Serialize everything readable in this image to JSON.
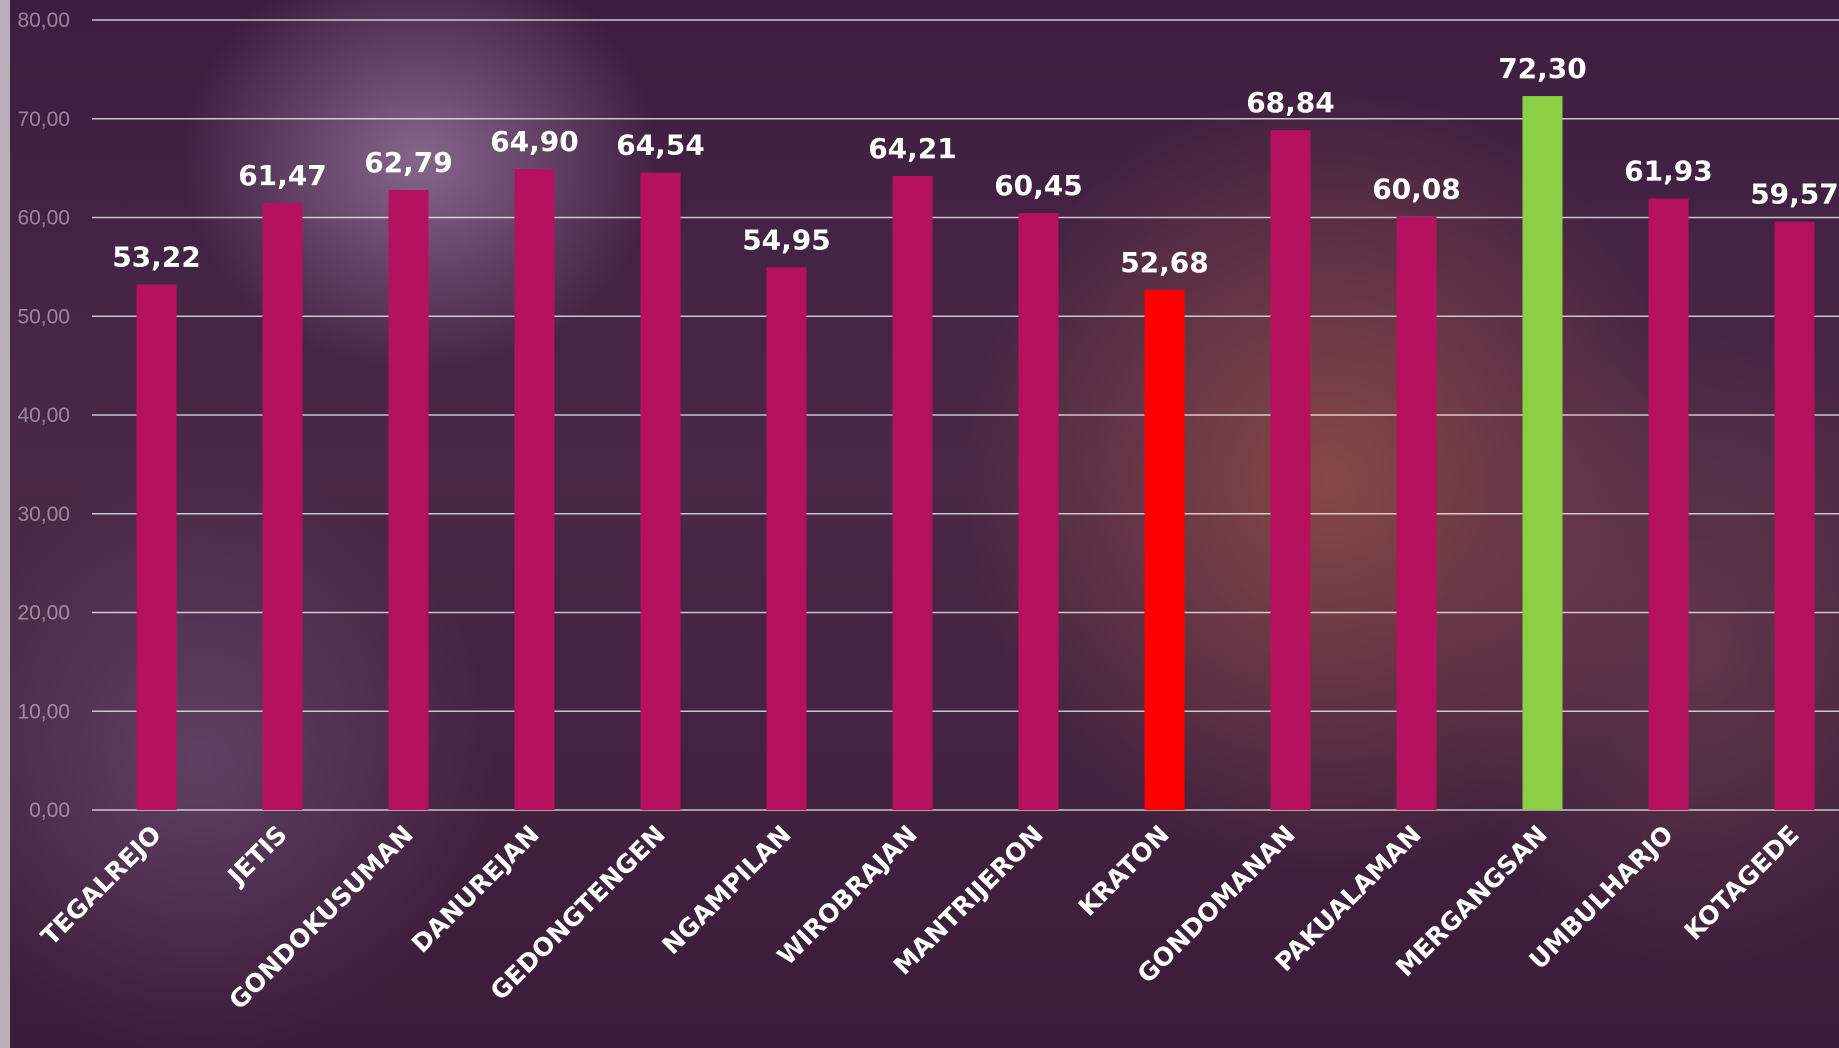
{
  "chart_data": {
    "type": "bar",
    "title": "",
    "xlabel": "",
    "ylabel": "",
    "ylim": [
      0,
      80
    ],
    "yticks": [
      "0,00",
      "10,00",
      "20,00",
      "30,00",
      "40,00",
      "50,00",
      "60,00",
      "70,00",
      "80,00"
    ],
    "grid": true,
    "categories": [
      "TEGALREJO",
      "JETIS",
      "GONDOKUSUMAN",
      "DANUREJAN",
      "GEDONGTENGEN",
      "NGAMPILAN",
      "WIROBRAJAN",
      "MANTRIJERON",
      "KRATON",
      "GONDOMANAN",
      "PAKUALAMAN",
      "MERGANGSAN",
      "UMBULHARJO",
      "KOTAGEDE"
    ],
    "values": [
      53.22,
      61.47,
      62.79,
      64.9,
      64.54,
      54.95,
      64.21,
      60.45,
      52.68,
      68.84,
      60.08,
      72.3,
      61.93,
      59.57
    ],
    "value_labels": [
      "53,22",
      "61,47",
      "62,79",
      "64,90",
      "64,54",
      "54,95",
      "64,21",
      "60,45",
      "52,68",
      "68,84",
      "60,08",
      "72,30",
      "61,93",
      "59,57"
    ],
    "colors": {
      "default": "#b5115f",
      "highlight_low": "#ff0000",
      "highlight_high": "#8bcf45"
    },
    "bar_colors": [
      "default",
      "default",
      "default",
      "default",
      "default",
      "default",
      "default",
      "default",
      "highlight_low",
      "default",
      "default",
      "highlight_high",
      "default",
      "default"
    ]
  }
}
